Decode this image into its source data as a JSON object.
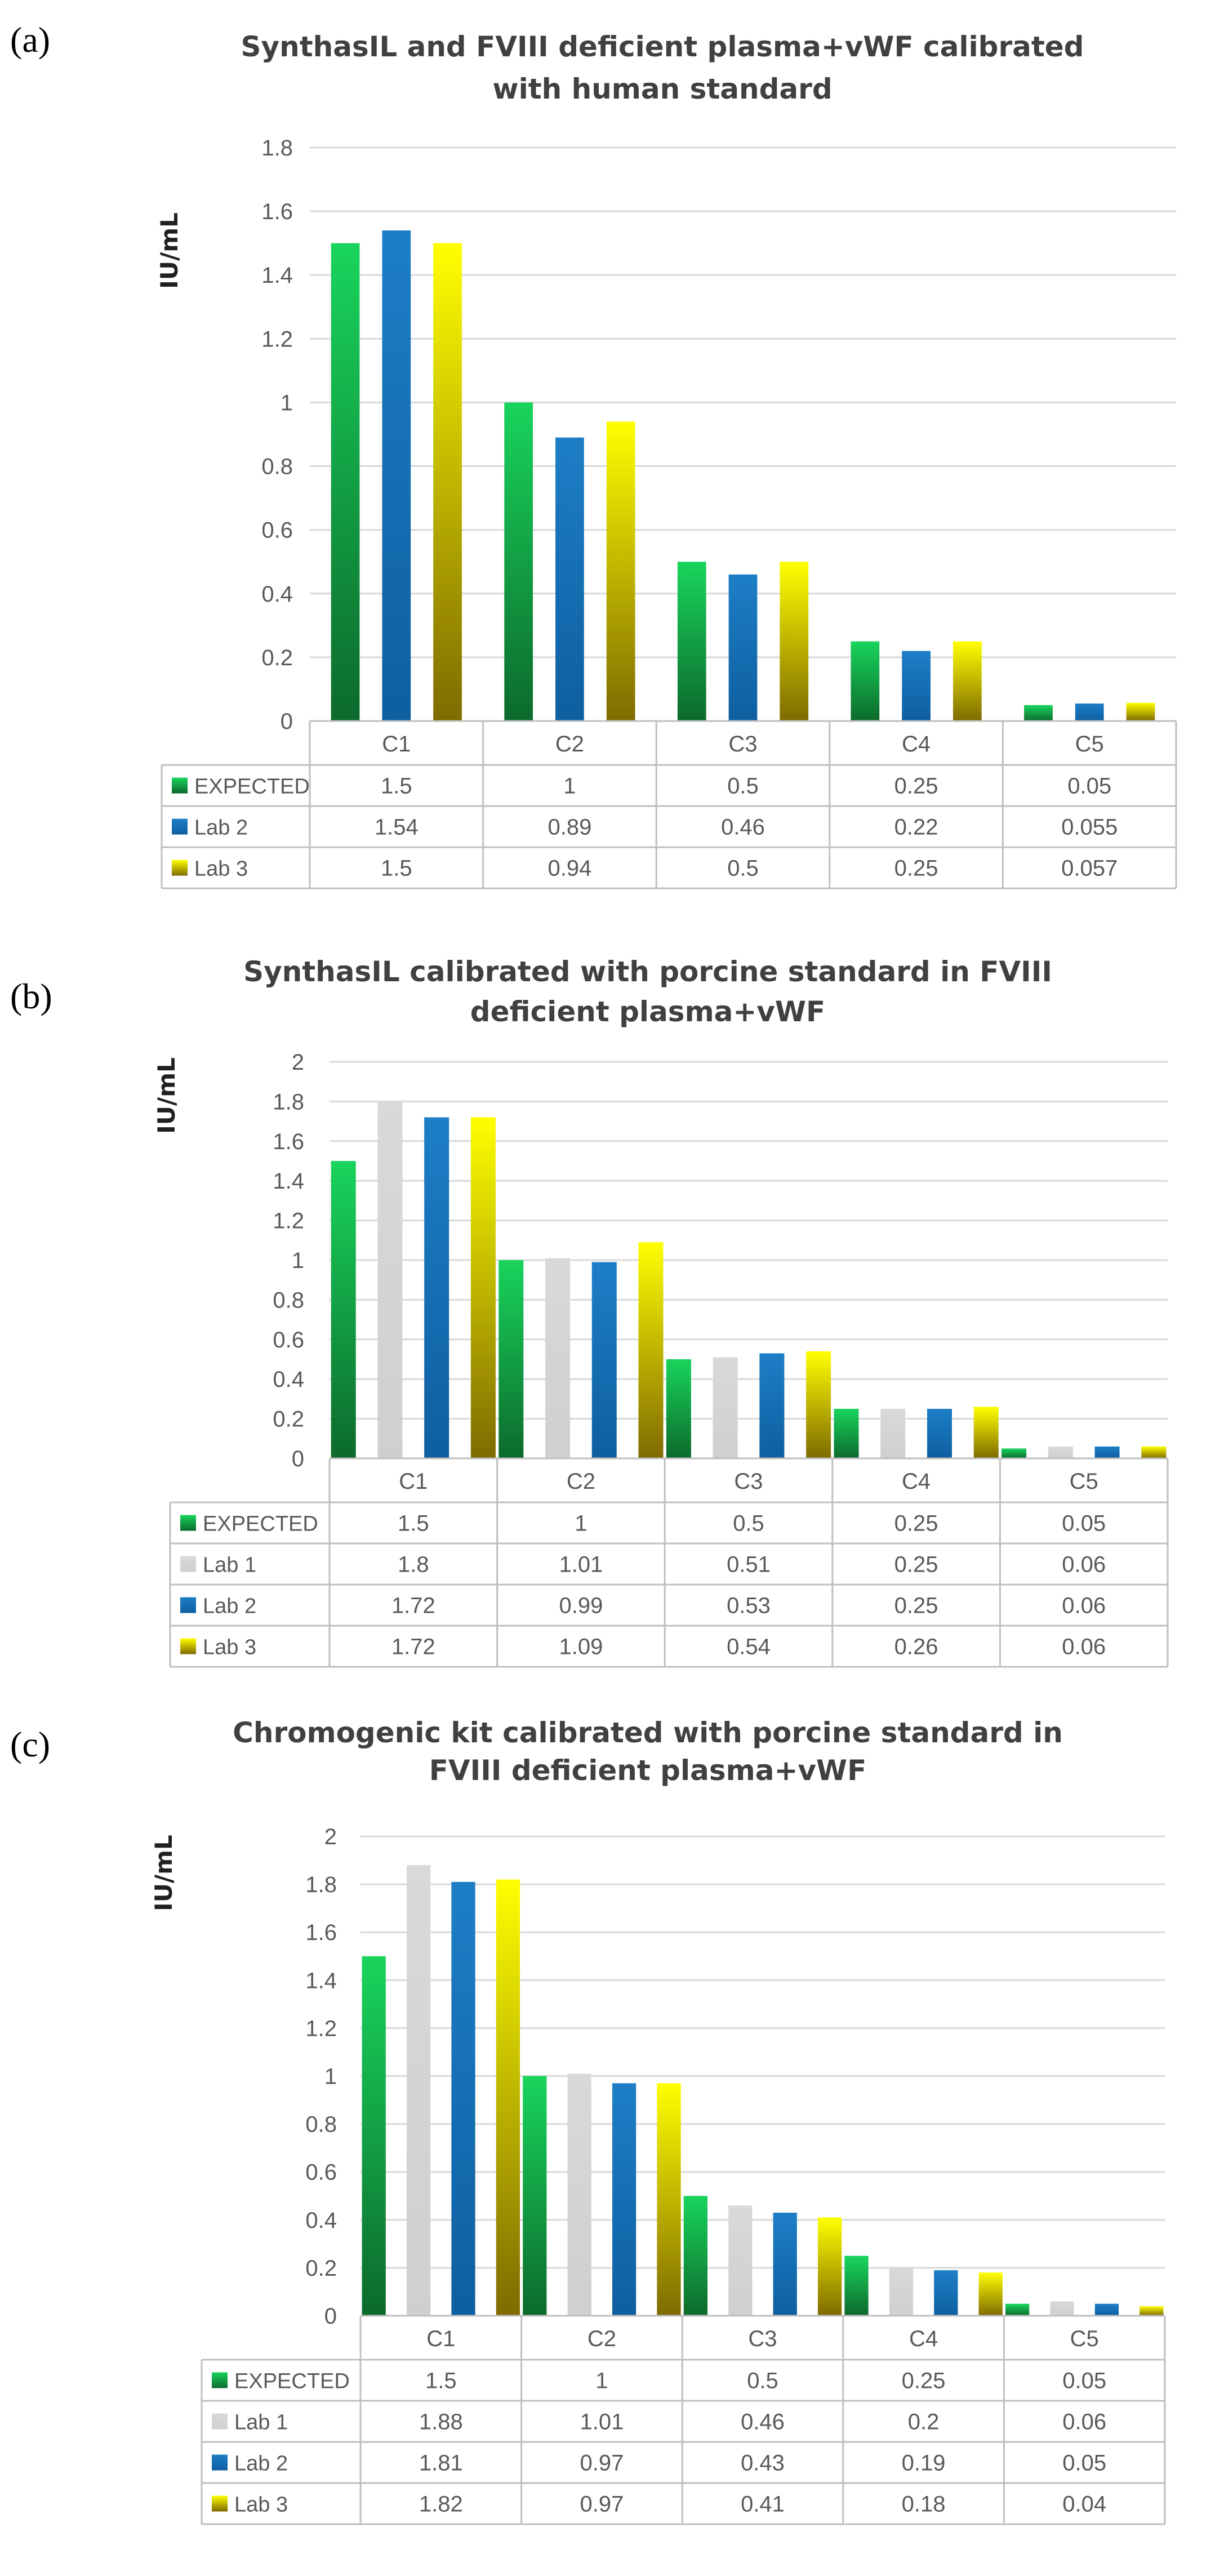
{
  "figure": {
    "panel_labels": [
      "(a)",
      "(b)",
      "(c)"
    ]
  },
  "colors": {
    "EXPECTED": {
      "top": "#19d45c",
      "bottom": "#0c6a2c"
    },
    "Lab 1": {
      "top": "#d9d9d9",
      "bottom": "#cfcfcf"
    },
    "Lab 2": {
      "top": "#1d7ec6",
      "bottom": "#0e5fa0"
    },
    "Lab 3": {
      "top": "#ffff00",
      "bottom": "#7f6a00"
    },
    "grid": "#d9d9d9",
    "border": "#bfbfbf"
  },
  "chart_data": [
    {
      "type": "bar",
      "panel": "(a)",
      "title": [
        "SynthasIL and FVIII deficient plasma+vWF calibrated",
        "with human standard"
      ],
      "ylabel": "IU/mL",
      "xlabel": "",
      "ylim": [
        0,
        1.8
      ],
      "yticks": [
        "0",
        "0.2",
        "0.4",
        "0.6",
        "0.8",
        "1",
        "1.2",
        "1.4",
        "1.6",
        "1.8"
      ],
      "grid": true,
      "legend": "data-table",
      "categories": [
        "C1",
        "C2",
        "C3",
        "C4",
        "C5"
      ],
      "series": [
        {
          "name": "EXPECTED",
          "values": [
            1.5,
            1,
            0.5,
            0.25,
            0.05
          ],
          "labels": [
            "1.5",
            "1",
            "0.5",
            "0.25",
            "0.05"
          ]
        },
        {
          "name": "Lab 2",
          "values": [
            1.54,
            0.89,
            0.46,
            0.22,
            0.055
          ],
          "labels": [
            "1.54",
            "0.89",
            "0.46",
            "0.22",
            "0.055"
          ]
        },
        {
          "name": "Lab 3",
          "values": [
            1.5,
            0.94,
            0.5,
            0.25,
            0.057
          ],
          "labels": [
            "1.5",
            "0.94",
            "0.5",
            "0.25",
            "0.057"
          ]
        }
      ]
    },
    {
      "type": "bar",
      "panel": "(b)",
      "title": [
        "SynthasIL calibrated with porcine standard in FVIII",
        "deficient plasma+vWF"
      ],
      "ylabel": "IU/mL",
      "xlabel": "",
      "ylim": [
        0,
        2
      ],
      "yticks": [
        "0",
        "0.2",
        "0.4",
        "0.6",
        "0.8",
        "1",
        "1.2",
        "1.4",
        "1.6",
        "1.8",
        "2"
      ],
      "grid": true,
      "legend": "data-table",
      "categories": [
        "C1",
        "C2",
        "C3",
        "C4",
        "C5"
      ],
      "series": [
        {
          "name": "EXPECTED",
          "values": [
            1.5,
            1,
            0.5,
            0.25,
            0.05
          ],
          "labels": [
            "1.5",
            "1",
            "0.5",
            "0.25",
            "0.05"
          ]
        },
        {
          "name": "Lab 1",
          "values": [
            1.8,
            1.01,
            0.51,
            0.25,
            0.06
          ],
          "labels": [
            "1.8",
            "1.01",
            "0.51",
            "0.25",
            "0.06"
          ]
        },
        {
          "name": "Lab 2",
          "values": [
            1.72,
            0.99,
            0.53,
            0.25,
            0.06
          ],
          "labels": [
            "1.72",
            "0.99",
            "0.53",
            "0.25",
            "0.06"
          ]
        },
        {
          "name": "Lab 3",
          "values": [
            1.72,
            1.09,
            0.54,
            0.26,
            0.06
          ],
          "labels": [
            "1.72",
            "1.09",
            "0.54",
            "0.26",
            "0.06"
          ]
        }
      ]
    },
    {
      "type": "bar",
      "panel": "(c)",
      "title": [
        "Chromogenic kit calibrated with porcine standard in",
        "FVIII deficient plasma+vWF"
      ],
      "ylabel": "IU/mL",
      "xlabel": "",
      "ylim": [
        0,
        2
      ],
      "yticks": [
        "0",
        "0.2",
        "0.4",
        "0.6",
        "0.8",
        "1",
        "1.2",
        "1.4",
        "1.6",
        "1.8",
        "2"
      ],
      "grid": true,
      "legend": "data-table",
      "categories": [
        "C1",
        "C2",
        "C3",
        "C4",
        "C5"
      ],
      "series": [
        {
          "name": "EXPECTED",
          "values": [
            1.5,
            1,
            0.5,
            0.25,
            0.05
          ],
          "labels": [
            "1.5",
            "1",
            "0.5",
            "0.25",
            "0.05"
          ]
        },
        {
          "name": "Lab 1",
          "values": [
            1.88,
            1.01,
            0.46,
            0.2,
            0.06
          ],
          "labels": [
            "1.88",
            "1.01",
            "0.46",
            "0.2",
            "0.06"
          ]
        },
        {
          "name": "Lab 2",
          "values": [
            1.81,
            0.97,
            0.43,
            0.19,
            0.05
          ],
          "labels": [
            "1.81",
            "0.97",
            "0.43",
            "0.19",
            "0.05"
          ]
        },
        {
          "name": "Lab 3",
          "values": [
            1.82,
            0.97,
            0.41,
            0.18,
            0.04
          ],
          "labels": [
            "1.82",
            "0.97",
            "0.41",
            "0.18",
            "0.04"
          ]
        }
      ]
    }
  ]
}
